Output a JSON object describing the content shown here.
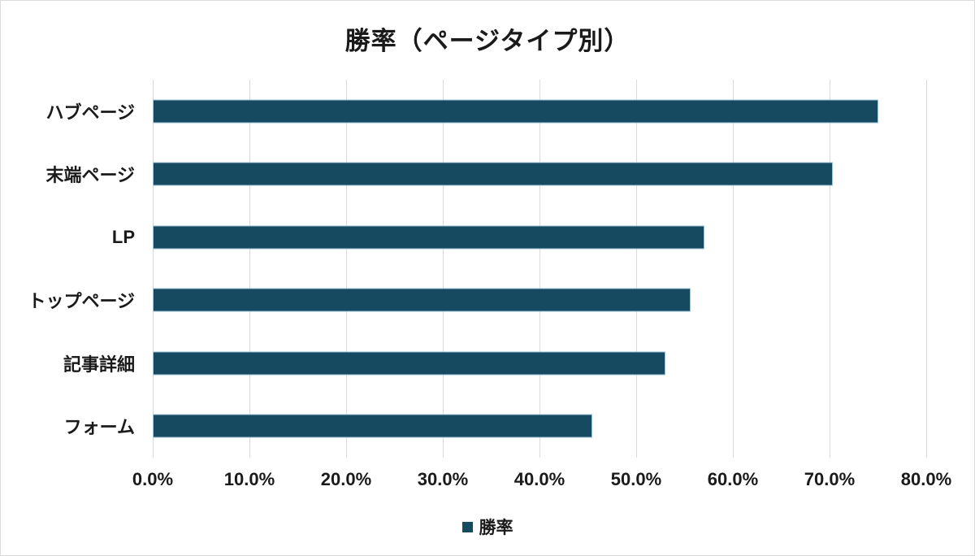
{
  "title": "勝率（ページタイプ別）",
  "legend": {
    "label": "勝率"
  },
  "colors": {
    "bar": "#164a61",
    "gridline": "#d9d9d9",
    "text": "#1a1a1a",
    "frame": "#dcdcdc"
  },
  "chart_data": {
    "type": "bar",
    "orientation": "horizontal",
    "title": "勝率（ページタイプ別）",
    "categories": [
      "ハブページ",
      "末端ページ",
      "LP",
      "トップページ",
      "記事詳細",
      "フォーム"
    ],
    "values": [
      75.0,
      70.3,
      57.1,
      55.6,
      53.0,
      45.5
    ],
    "series": [
      {
        "name": "勝率",
        "values": [
          75.0,
          70.3,
          57.1,
          55.6,
          53.0,
          45.5
        ]
      }
    ],
    "value_unit": "%",
    "x_ticks": [
      "0.0%",
      "10.0%",
      "20.0%",
      "30.0%",
      "40.0%",
      "50.0%",
      "60.0%",
      "70.0%",
      "80.0%"
    ],
    "xlim": [
      0,
      80
    ],
    "xlabel": "",
    "ylabel": "",
    "grid": "vertical",
    "legend_position": "bottom"
  }
}
